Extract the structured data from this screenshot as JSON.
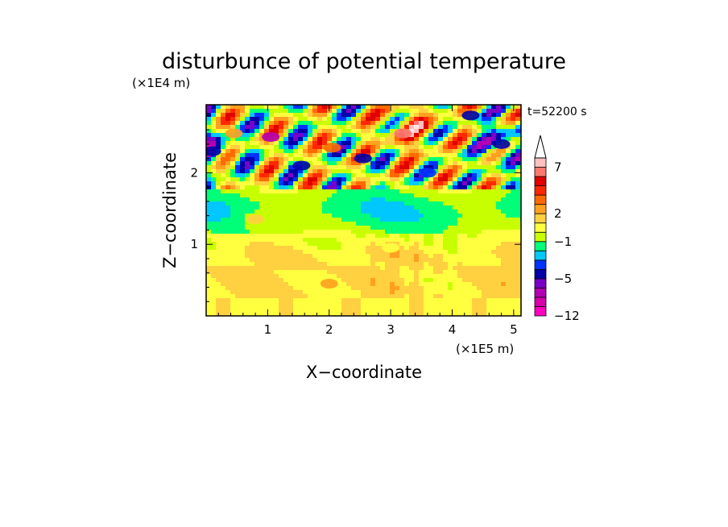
{
  "chart_data": {
    "type": "heatmap",
    "title": "disturbunce of potential temperature",
    "xlabel": "X−coordinate",
    "ylabel": "Z−coordinate",
    "x_unit": "(×1E5 m)",
    "y_unit": "(×1E4 m)",
    "time_label": "t=52200 s",
    "xlim": [
      0,
      5.12
    ],
    "ylim": [
      0,
      2.95
    ],
    "x_ticks": [
      1,
      2,
      3,
      4,
      5
    ],
    "y_ticks": [
      1,
      2
    ],
    "colorbar": {
      "levels": [
        -12,
        -10,
        -8,
        -6,
        -5,
        -4,
        -3,
        -2,
        -1,
        0,
        1,
        2,
        3,
        4,
        5,
        6,
        7,
        8,
        9
      ],
      "colors": [
        "#ff00c0",
        "#d800a8",
        "#b400b4",
        "#7a00c8",
        "#0000a8",
        "#0032ff",
        "#00c8ff",
        "#00ff78",
        "#c8ff00",
        "#ffff40",
        "#ffd040",
        "#ffa020",
        "#ff6a00",
        "#ff2800",
        "#e00000",
        "#ff7870",
        "#ffc0c0"
      ],
      "tick_labels": [
        "7",
        "2",
        "−1",
        "−5",
        "−12"
      ],
      "tick_values": [
        7,
        2,
        -1,
        -5,
        -12
      ],
      "extend": "max"
    },
    "field_features": [
      {
        "x": 0.1,
        "z": 2.3,
        "value": -5
      },
      {
        "x": 0.45,
        "z": 2.55,
        "value": 2
      },
      {
        "x": 1.05,
        "z": 2.5,
        "value": -8
      },
      {
        "x": 1.55,
        "z": 2.1,
        "value": -5
      },
      {
        "x": 2.05,
        "z": 2.35,
        "value": 3
      },
      {
        "x": 2.55,
        "z": 2.2,
        "value": -5
      },
      {
        "x": 3.2,
        "z": 2.55,
        "value": 6
      },
      {
        "x": 3.6,
        "z": 2.0,
        "value": -4
      },
      {
        "x": 4.3,
        "z": 2.8,
        "value": -5
      },
      {
        "x": 4.8,
        "z": 2.4,
        "value": -5
      },
      {
        "x": 0.8,
        "z": 1.35,
        "value": 1
      },
      {
        "x": 3.0,
        "z": 0.95,
        "value": 0
      },
      {
        "x": 2.0,
        "z": 0.45,
        "value": 2
      }
    ]
  }
}
